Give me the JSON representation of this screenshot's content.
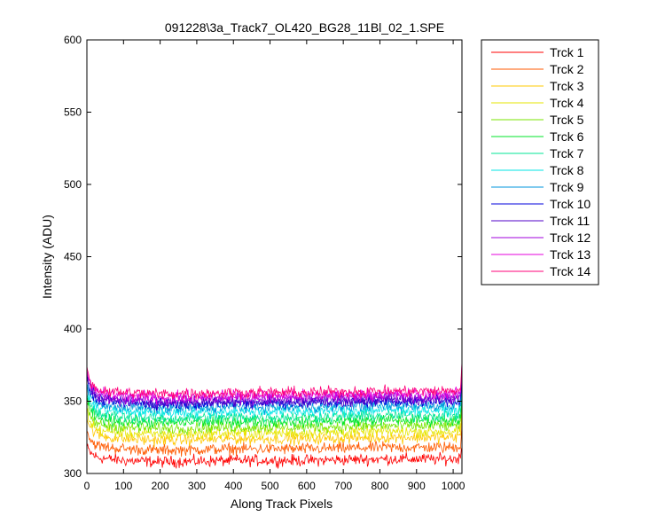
{
  "chart_data": {
    "type": "line",
    "title": "091228\\3a_Track7_OL420_BG28_11Bl_02_1.SPE",
    "xlabel": "Along Track Pixels",
    "ylabel": "Intensity (ADU)",
    "xlim": [
      0,
      1024
    ],
    "ylim": [
      300,
      600
    ],
    "xticks": [
      0,
      100,
      200,
      300,
      400,
      500,
      600,
      700,
      800,
      900,
      1000
    ],
    "yticks": [
      300,
      350,
      400,
      450,
      500,
      550,
      600
    ],
    "grid": false,
    "legend_position": "outside-right-top",
    "noise_amplitude": 3,
    "series": [
      {
        "name": "Trck 1",
        "color": "#ff0000",
        "x": [
          0,
          10,
          30,
          60,
          100,
          200,
          400,
          600,
          800,
          1000,
          1020,
          1024
        ],
        "y": [
          318,
          314,
          311,
          310,
          309,
          308,
          309,
          309,
          310,
          310,
          311,
          322
        ]
      },
      {
        "name": "Trck 2",
        "color": "#ff5a00",
        "x": [
          0,
          10,
          30,
          60,
          100,
          200,
          400,
          600,
          800,
          1000,
          1020,
          1024
        ],
        "y": [
          330,
          323,
          319,
          318,
          317,
          316,
          317,
          317,
          318,
          318,
          319,
          335
        ]
      },
      {
        "name": "Trck 3",
        "color": "#ffc800",
        "x": [
          0,
          10,
          30,
          60,
          100,
          200,
          400,
          600,
          800,
          1000,
          1020,
          1024
        ],
        "y": [
          338,
          331,
          327,
          325,
          324,
          323,
          324,
          324,
          325,
          325,
          326,
          342
        ]
      },
      {
        "name": "Trck 4",
        "color": "#e6e600",
        "x": [
          0,
          10,
          30,
          60,
          100,
          200,
          400,
          600,
          800,
          1000,
          1020,
          1024
        ],
        "y": [
          343,
          335,
          330,
          329,
          328,
          327,
          328,
          328,
          329,
          329,
          330,
          347
        ]
      },
      {
        "name": "Trck 5",
        "color": "#78e600",
        "x": [
          0,
          10,
          30,
          60,
          100,
          200,
          400,
          600,
          800,
          1000,
          1020,
          1024
        ],
        "y": [
          347,
          339,
          334,
          333,
          332,
          331,
          332,
          332,
          333,
          333,
          334,
          351
        ]
      },
      {
        "name": "Trck 6",
        "color": "#00e628",
        "x": [
          0,
          10,
          30,
          60,
          100,
          200,
          400,
          600,
          800,
          1000,
          1020,
          1024
        ],
        "y": [
          351,
          343,
          338,
          337,
          336,
          335,
          336,
          336,
          337,
          337,
          338,
          355
        ]
      },
      {
        "name": "Trck 7",
        "color": "#00e696",
        "x": [
          0,
          10,
          30,
          60,
          100,
          200,
          400,
          600,
          800,
          1000,
          1020,
          1024
        ],
        "y": [
          354,
          346,
          341,
          340,
          339,
          338,
          339,
          339,
          340,
          340,
          341,
          358
        ]
      },
      {
        "name": "Trck 8",
        "color": "#00e6e6",
        "x": [
          0,
          10,
          30,
          60,
          100,
          200,
          400,
          600,
          800,
          1000,
          1020,
          1024
        ],
        "y": [
          358,
          350,
          345,
          344,
          343,
          342,
          343,
          343,
          344,
          344,
          345,
          362
        ]
      },
      {
        "name": "Trck 9",
        "color": "#0096dc",
        "x": [
          0,
          10,
          30,
          60,
          100,
          200,
          400,
          600,
          800,
          1000,
          1020,
          1024
        ],
        "y": [
          362,
          353,
          348,
          347,
          346,
          345,
          346,
          346,
          347,
          347,
          348,
          365
        ]
      },
      {
        "name": "Trck 10",
        "color": "#0000dc",
        "x": [
          0,
          10,
          30,
          60,
          100,
          200,
          400,
          600,
          800,
          1000,
          1020,
          1024
        ],
        "y": [
          365,
          356,
          351,
          350,
          349,
          348,
          349,
          349,
          350,
          350,
          351,
          368
        ]
      },
      {
        "name": "Trck 11",
        "color": "#5000c8",
        "x": [
          0,
          10,
          30,
          60,
          100,
          200,
          400,
          600,
          800,
          1000,
          1020,
          1024
        ],
        "y": [
          367,
          358,
          352,
          351,
          350,
          349,
          350,
          350,
          351,
          351,
          352,
          370
        ]
      },
      {
        "name": "Trck 12",
        "color": "#a000dc",
        "x": [
          0,
          10,
          30,
          60,
          100,
          200,
          400,
          600,
          800,
          1000,
          1020,
          1024
        ],
        "y": [
          369,
          360,
          354,
          353,
          352,
          351,
          352,
          352,
          353,
          353,
          354,
          372
        ]
      },
      {
        "name": "Trck 13",
        "color": "#e600dc",
        "x": [
          0,
          10,
          30,
          60,
          100,
          200,
          400,
          600,
          800,
          1000,
          1020,
          1024
        ],
        "y": [
          370,
          361,
          356,
          355,
          354,
          353,
          354,
          354,
          355,
          355,
          356,
          375
        ]
      },
      {
        "name": "Trck 14",
        "color": "#ff0078",
        "x": [
          0,
          10,
          30,
          60,
          100,
          200,
          400,
          600,
          800,
          1000,
          1020,
          1024
        ],
        "y": [
          372,
          363,
          358,
          357,
          356,
          355,
          356,
          356,
          357,
          357,
          358,
          379
        ]
      }
    ]
  }
}
